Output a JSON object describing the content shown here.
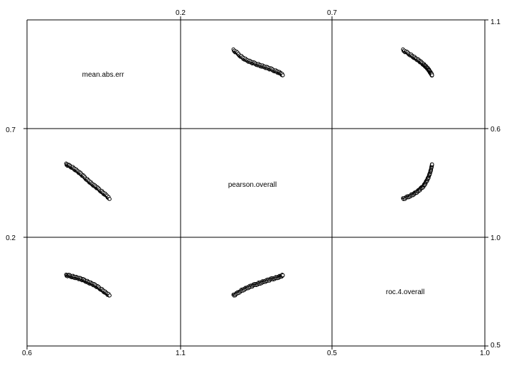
{
  "chart_data": {
    "type": "scatter-matrix",
    "variables": [
      "mean.abs.err",
      "pearson.overall",
      "roc.4.overall"
    ],
    "diagonal_labels": [
      "mean.abs.err",
      "pearson.overall",
      "roc.4.overall"
    ],
    "axis_ranges": {
      "mean.abs.err": [
        0.6,
        1.1
      ],
      "pearson.overall": [
        0.2,
        0.7
      ],
      "roc.4.overall": [
        0.5,
        1.0
      ]
    },
    "tick_labels": {
      "top": [
        "0.2",
        "0.7"
      ],
      "bottom": [
        "0.6",
        "1.1",
        "0.5",
        "1.0"
      ],
      "left": [
        "0.7",
        "0.2"
      ],
      "right": [
        "1.1",
        "0.6",
        "1.0",
        "0.5"
      ]
    },
    "correlation": {
      "mean.abs.err": {
        "x": [
          0.72,
          0.73,
          0.74,
          0.75,
          0.76,
          0.77,
          0.78,
          0.79,
          0.8,
          0.81,
          0.82,
          0.83,
          0.84,
          0.85,
          0.86,
          0.87
        ],
        "pearson.overall": [
          0.543,
          0.536,
          0.529,
          0.519,
          0.508,
          0.496,
          0.483,
          0.47,
          0.457,
          0.444,
          0.433,
          0.422,
          0.41,
          0.398,
          0.387,
          0.37
        ],
        "roc.4.overall": [
          0.831,
          0.83,
          0.826,
          0.822,
          0.818,
          0.813,
          0.808,
          0.802,
          0.795,
          0.789,
          0.781,
          0.772,
          0.763,
          0.752,
          0.741,
          0.731
        ]
      },
      "pearson.overall": {
        "x": [
          0.37,
          0.382,
          0.394,
          0.406,
          0.418,
          0.43,
          0.442,
          0.454,
          0.466,
          0.478,
          0.49,
          0.502,
          0.514,
          0.526,
          0.536,
          0.543
        ],
        "mean.abs.err": [
          0.97,
          0.957,
          0.942,
          0.929,
          0.919,
          0.911,
          0.905,
          0.899,
          0.893,
          0.887,
          0.881,
          0.875,
          0.868,
          0.861,
          0.854,
          0.845
        ],
        "roc.4.overall": [
          0.731,
          0.74,
          0.753,
          0.761,
          0.769,
          0.776,
          0.783,
          0.789,
          0.795,
          0.801,
          0.806,
          0.812,
          0.817,
          0.822,
          0.827,
          0.832
        ]
      },
      "roc.4.overall": {
        "x": [
          0.731,
          0.745,
          0.756,
          0.767,
          0.776,
          0.786,
          0.794,
          0.802,
          0.808,
          0.813,
          0.818,
          0.822,
          0.825,
          0.828,
          0.83,
          0.832
        ],
        "mean.abs.err": [
          0.97,
          0.958,
          0.948,
          0.937,
          0.928,
          0.918,
          0.909,
          0.9,
          0.892,
          0.884,
          0.876,
          0.868,
          0.861,
          0.855,
          0.85,
          0.845
        ],
        "pearson.overall": [
          0.37,
          0.378,
          0.386,
          0.394,
          0.402,
          0.412,
          0.423,
          0.434,
          0.447,
          0.46,
          0.473,
          0.487,
          0.502,
          0.516,
          0.53,
          0.543
        ]
      }
    },
    "grid": true,
    "legend": "none"
  }
}
